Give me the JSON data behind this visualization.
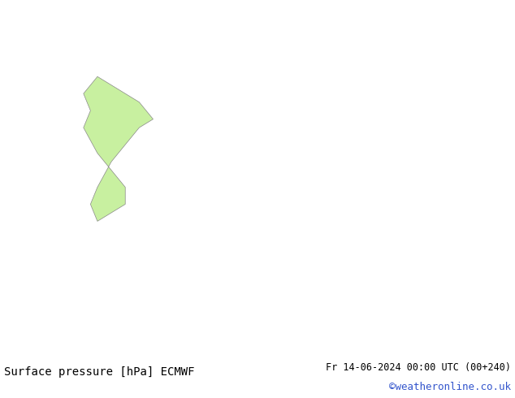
{
  "title_left": "Surface pressure [hPa] ECMWF",
  "title_right": "Fr 14-06-2024 00:00 UTC (00+240)",
  "credit": "©weatheronline.co.uk",
  "land_color": "#c8f0a0",
  "sea_color": "#d8d8d8",
  "coast_color": "#888888",
  "isobar_color_red": "#ff0000",
  "isobar_color_blue": "#0000ff",
  "isobar_color_black": "#000000",
  "font_size_title": 10,
  "font_size_credit": 9,
  "figsize": [
    6.34,
    4.9
  ],
  "dpi": 100,
  "lon_min": -12.0,
  "lon_max": 25.0,
  "lat_min": 42.0,
  "lat_max": 63.0
}
